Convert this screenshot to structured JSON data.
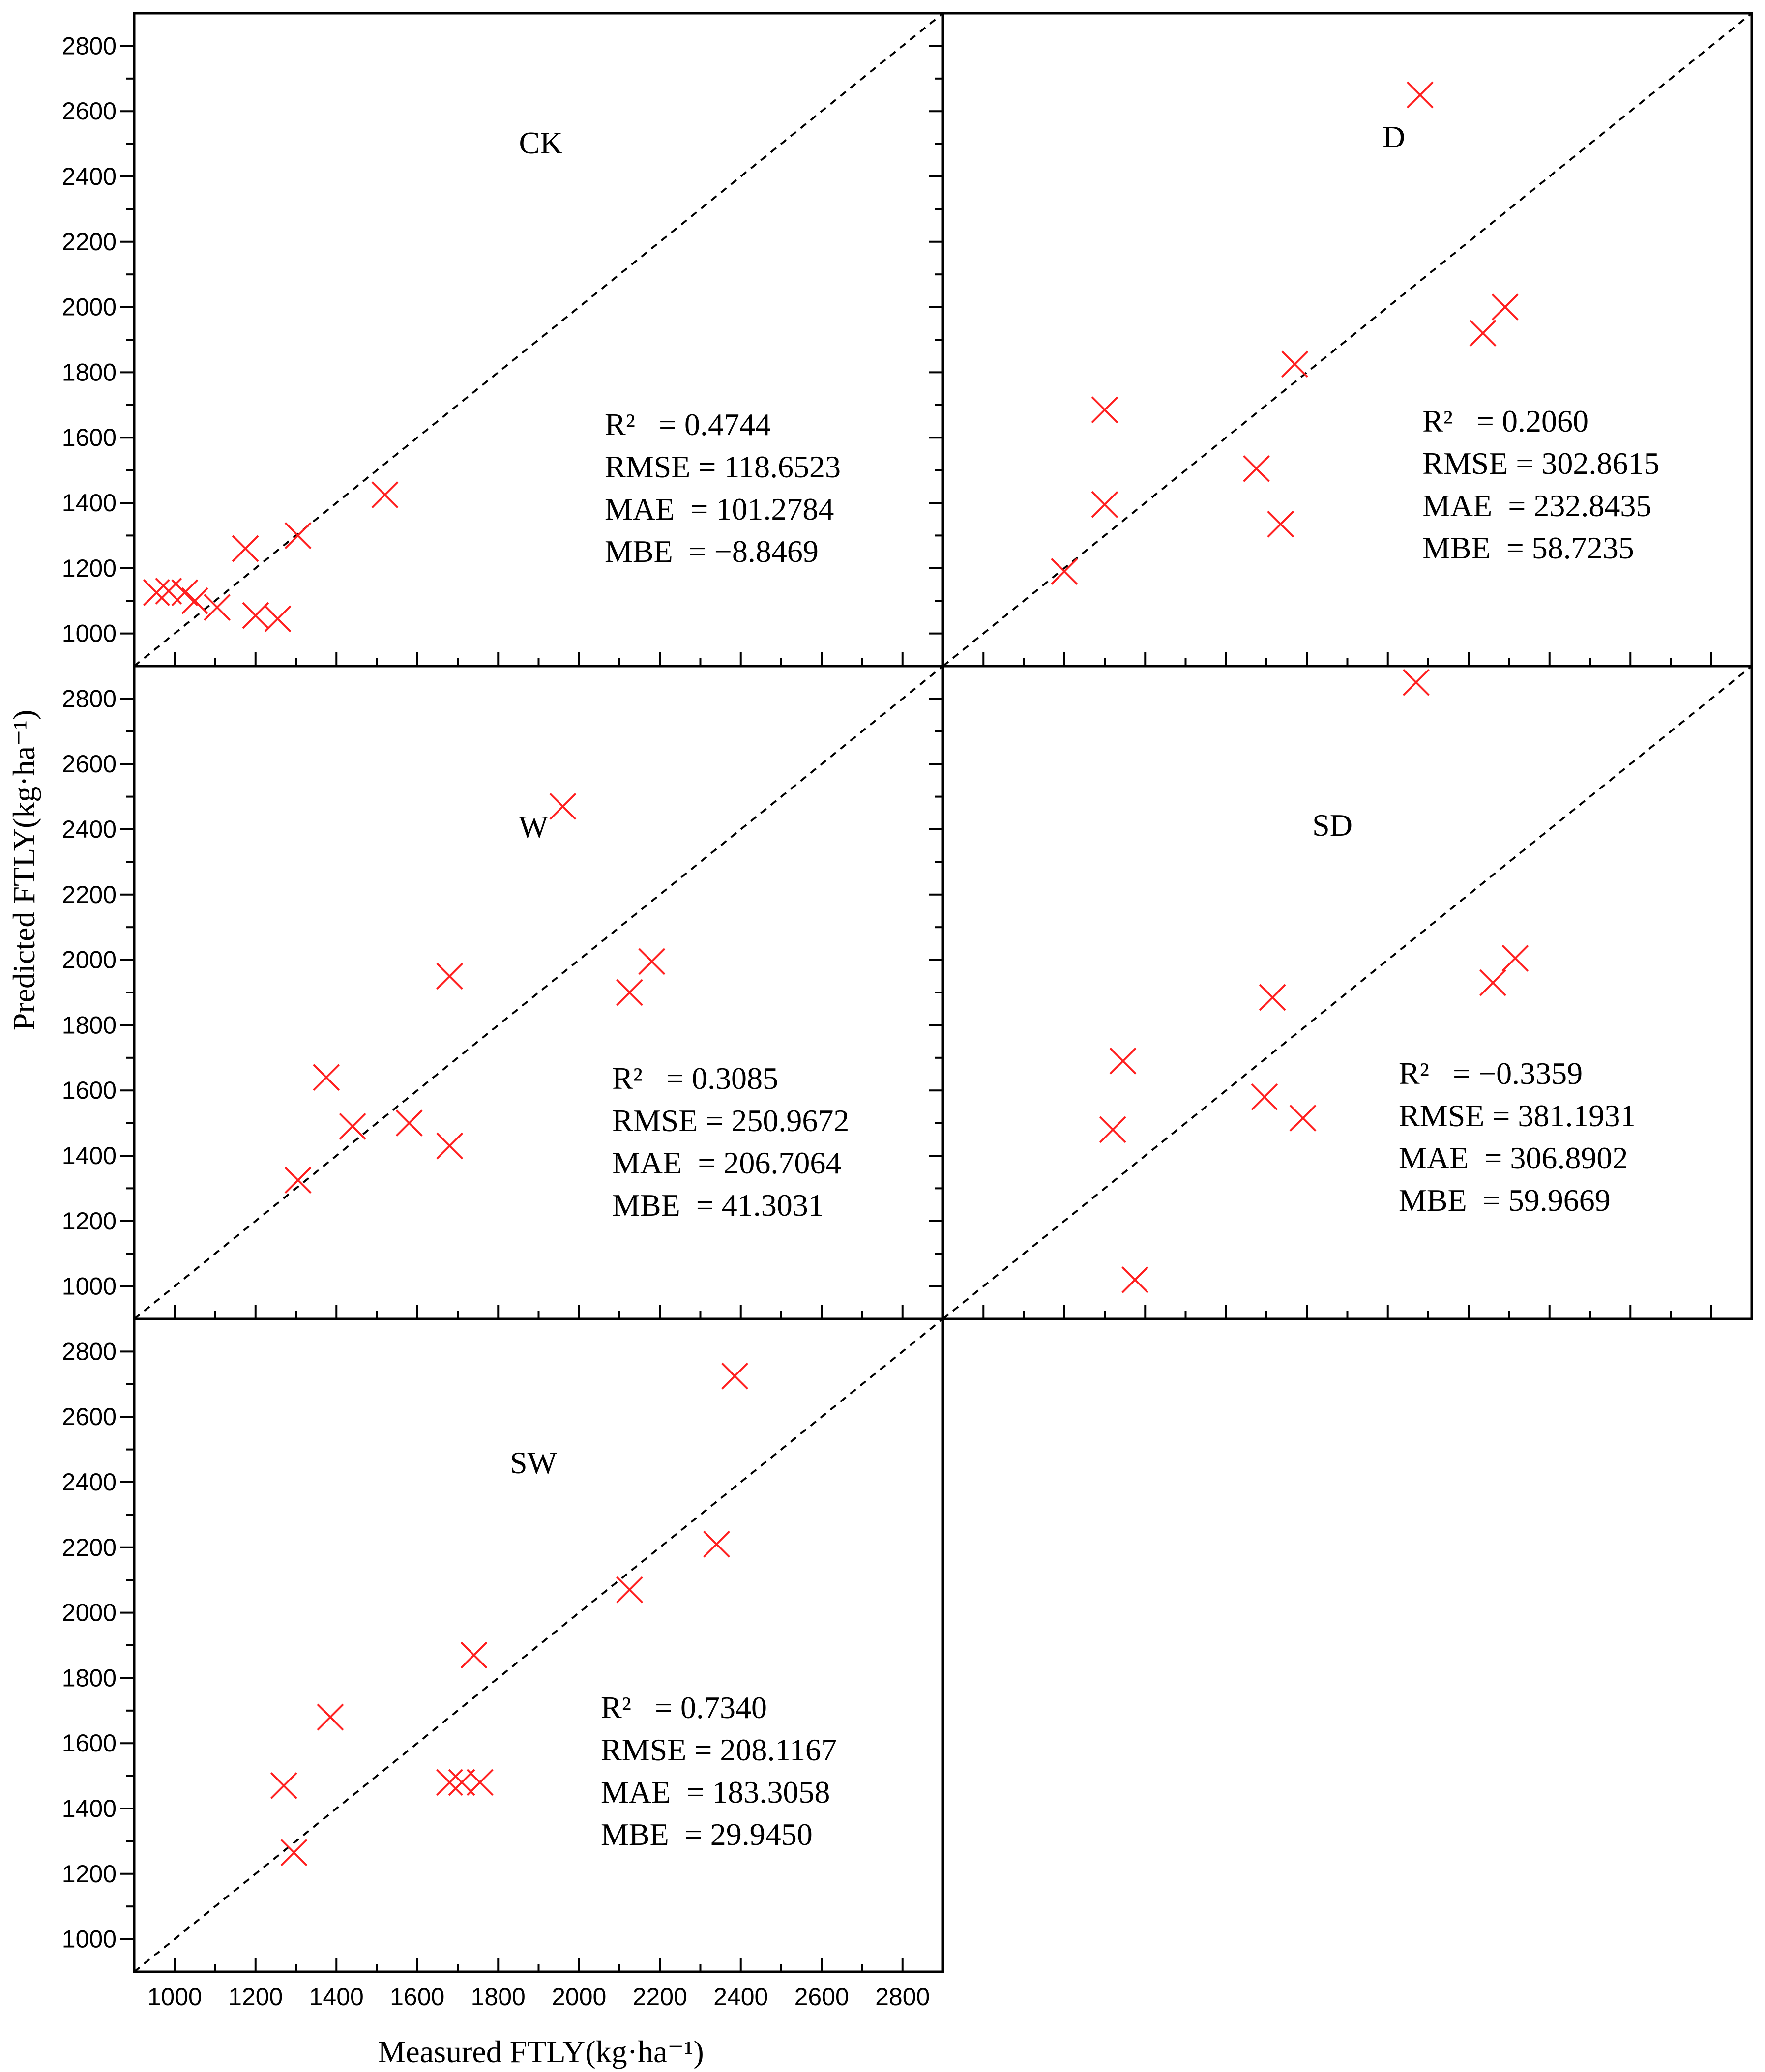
{
  "colors": {
    "marker": "#ff2020",
    "axis": "#000000",
    "identity_line": "#000000"
  },
  "axes": {
    "xlabel": "Measured FTLY(kg·ha⁻¹)",
    "ylabel": "Predicted FTLY(kg·ha⁻¹)",
    "x_ticks": [
      "1000",
      "1200",
      "1400",
      "1600",
      "1800",
      "2000",
      "2200",
      "2400",
      "2600",
      "2800"
    ],
    "y_ticks": [
      "1000",
      "1200",
      "1400",
      "1600",
      "1800",
      "2000",
      "2200",
      "2400",
      "2600",
      "2800"
    ]
  },
  "chart_data": [
    {
      "type": "scatter",
      "title": "CK",
      "xlim": [
        900,
        2900
      ],
      "ylim": [
        900,
        2900
      ],
      "identity_line": true,
      "metrics": [
        "R²   = 0.4744",
        "RMSE = 118.6523",
        "MAE  = 101.2784",
        "MBE  = −8.8469"
      ],
      "points": [
        [
          955,
          1125
        ],
        [
          985,
          1130
        ],
        [
          1025,
          1125
        ],
        [
          1050,
          1100
        ],
        [
          1105,
          1080
        ],
        [
          1175,
          1260
        ],
        [
          1200,
          1055
        ],
        [
          1255,
          1045
        ],
        [
          1305,
          1300
        ],
        [
          1520,
          1425
        ]
      ]
    },
    {
      "type": "scatter",
      "title": "D",
      "xlim": [
        900,
        2900
      ],
      "ylim": [
        900,
        2900
      ],
      "identity_line": true,
      "metrics": [
        "R²   = 0.2060",
        "RMSE = 302.8615",
        "MAE  = 232.8435",
        "MBE  = 58.7235"
      ],
      "points": [
        [
          1200,
          1190
        ],
        [
          1300,
          1685
        ],
        [
          1300,
          1395
        ],
        [
          1675,
          1505
        ],
        [
          1735,
          1335
        ],
        [
          1770,
          1825
        ],
        [
          2080,
          2650
        ],
        [
          2235,
          1920
        ],
        [
          2290,
          2000
        ]
      ]
    },
    {
      "type": "scatter",
      "title": "W",
      "xlim": [
        900,
        2900
      ],
      "ylim": [
        900,
        2900
      ],
      "identity_line": true,
      "metrics": [
        "R²   = 0.3085",
        "RMSE = 250.9672",
        "MAE  = 206.7064",
        "MBE  = 41.3031"
      ],
      "points": [
        [
          1305,
          1325
        ],
        [
          1375,
          1640
        ],
        [
          1440,
          1490
        ],
        [
          1580,
          1500
        ],
        [
          1680,
          1950
        ],
        [
          1680,
          1430
        ],
        [
          1960,
          2470
        ],
        [
          2125,
          1900
        ],
        [
          2180,
          1995
        ]
      ]
    },
    {
      "type": "scatter",
      "title": "SD",
      "xlim": [
        900,
        2900
      ],
      "ylim": [
        900,
        2900
      ],
      "identity_line": true,
      "metrics": [
        "R²   = −0.3359",
        "RMSE = 381.1931",
        "MAE  = 306.8902",
        "MBE  = 59.9669"
      ],
      "points": [
        [
          1320,
          1480
        ],
        [
          1345,
          1690
        ],
        [
          1375,
          1020
        ],
        [
          1695,
          1580
        ],
        [
          1715,
          1885
        ],
        [
          1790,
          1515
        ],
        [
          2070,
          2850
        ],
        [
          2260,
          1930
        ],
        [
          2315,
          2005
        ]
      ]
    },
    {
      "type": "scatter",
      "title": "SW",
      "xlim": [
        900,
        2900
      ],
      "ylim": [
        900,
        2900
      ],
      "identity_line": true,
      "metrics": [
        "R²   = 0.7340",
        "RMSE = 208.1167",
        "MAE  = 183.3058",
        "MBE  = 29.9450"
      ],
      "points": [
        [
          1270,
          1470
        ],
        [
          1295,
          1265
        ],
        [
          1385,
          1680
        ],
        [
          1680,
          1480
        ],
        [
          1710,
          1480
        ],
        [
          1740,
          1870
        ],
        [
          1755,
          1480
        ],
        [
          2125,
          2070
        ],
        [
          2340,
          2210
        ],
        [
          2385,
          2725
        ]
      ]
    }
  ]
}
